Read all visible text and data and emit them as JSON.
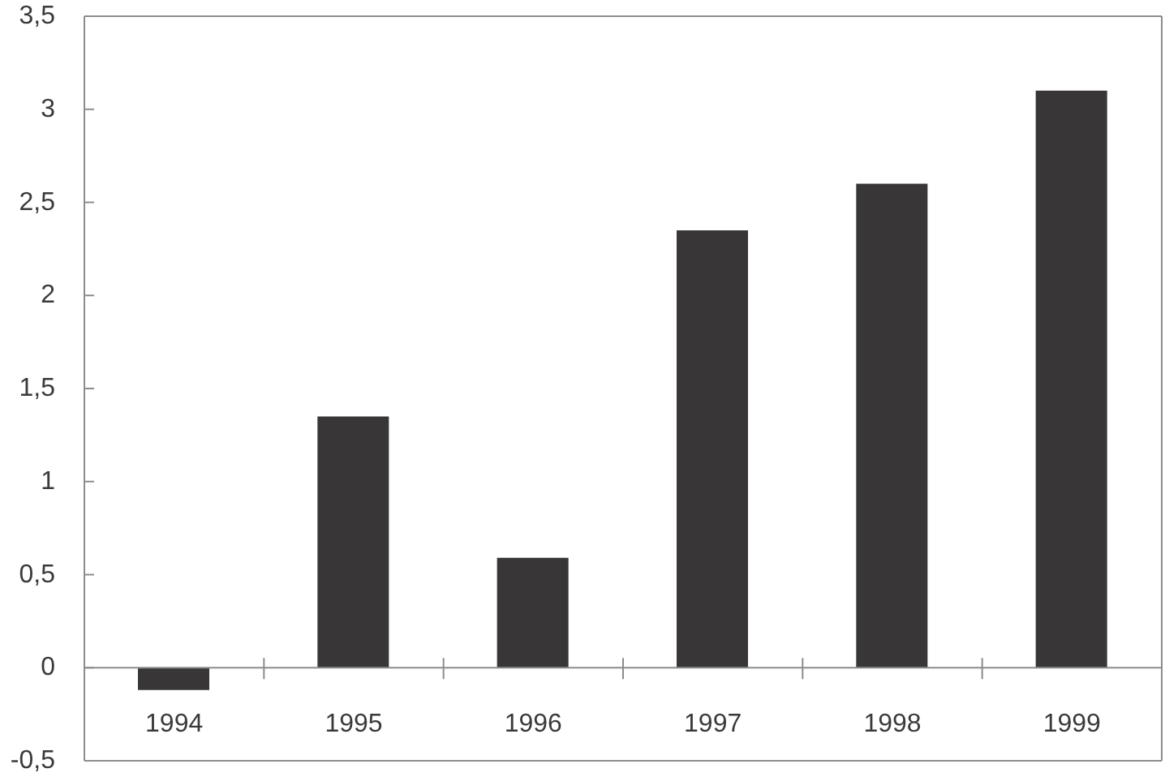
{
  "chart_data": {
    "type": "bar",
    "categories": [
      "1994",
      "1995",
      "1996",
      "1997",
      "1998",
      "1999"
    ],
    "values": [
      -0.12,
      1.35,
      0.59,
      2.35,
      2.6,
      3.1
    ],
    "color": "#383636",
    "ylim": [
      -0.5,
      3.5
    ],
    "yticks": [
      {
        "value": -0.5,
        "label": "-0,5"
      },
      0,
      {
        "value": 0.5,
        "label": "0,5"
      },
      1,
      {
        "value": 1.5,
        "label": "1,5"
      },
      2,
      {
        "value": 2.5,
        "label": "2,5"
      },
      3,
      {
        "value": 3.5,
        "label": "3,5"
      }
    ]
  }
}
